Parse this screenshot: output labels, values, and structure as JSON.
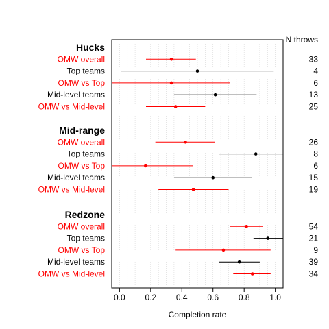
{
  "chart_data": {
    "type": "scatter",
    "subtype": "forest-plot-with-confidence-intervals",
    "xlabel": "Completion rate",
    "xlim": [
      -0.05,
      1.05
    ],
    "xticks": [
      "0.0",
      "0.2",
      "0.4",
      "0.6",
      "0.8",
      "1.0"
    ],
    "xtick_values": [
      0.0,
      0.2,
      0.4,
      0.6,
      0.8,
      1.0
    ],
    "grid": "vertical dotted",
    "right_header": "N throws",
    "colors": {
      "omw": "#ff0000",
      "other": "#000000",
      "grid": "#d3d3d3"
    },
    "groups": [
      {
        "name": "Hucks",
        "rows": [
          {
            "label": "OMW overall",
            "highlight": true,
            "estimate": 0.333,
            "lower": 0.17,
            "upper": 0.49,
            "n": "33"
          },
          {
            "label": "Top teams",
            "highlight": false,
            "estimate": 0.5,
            "lower": 0.01,
            "upper": 0.99,
            "n": "4"
          },
          {
            "label": "OMW vs Top",
            "highlight": true,
            "estimate": 0.333,
            "lower": -0.05,
            "upper": 0.71,
            "n": "6"
          },
          {
            "label": "Mid-level teams",
            "highlight": false,
            "estimate": 0.615,
            "lower": 0.35,
            "upper": 0.88,
            "n": "13"
          },
          {
            "label": "OMW vs Mid-level",
            "highlight": true,
            "estimate": 0.36,
            "lower": 0.17,
            "upper": 0.55,
            "n": "25"
          }
        ]
      },
      {
        "name": "Mid-range",
        "rows": [
          {
            "label": "OMW overall",
            "highlight": true,
            "estimate": 0.423,
            "lower": 0.23,
            "upper": 0.61,
            "n": "26"
          },
          {
            "label": "Top teams",
            "highlight": false,
            "estimate": 0.875,
            "lower": 0.64,
            "upper": 1.05,
            "n": "8"
          },
          {
            "label": "OMW vs Top",
            "highlight": true,
            "estimate": 0.167,
            "lower": -0.05,
            "upper": 0.47,
            "n": "6"
          },
          {
            "label": "Mid-level teams",
            "highlight": false,
            "estimate": 0.6,
            "lower": 0.35,
            "upper": 0.85,
            "n": "15"
          },
          {
            "label": "OMW vs Mid-level",
            "highlight": true,
            "estimate": 0.474,
            "lower": 0.25,
            "upper": 0.7,
            "n": "19"
          }
        ]
      },
      {
        "name": "Redzone",
        "rows": [
          {
            "label": "OMW overall",
            "highlight": true,
            "estimate": 0.815,
            "lower": 0.71,
            "upper": 0.92,
            "n": "54"
          },
          {
            "label": "Top teams",
            "highlight": false,
            "estimate": 0.952,
            "lower": 0.86,
            "upper": 1.05,
            "n": "21"
          },
          {
            "label": "OMW vs Top",
            "highlight": true,
            "estimate": 0.667,
            "lower": 0.36,
            "upper": 0.97,
            "n": "9"
          },
          {
            "label": "Mid-level teams",
            "highlight": false,
            "estimate": 0.769,
            "lower": 0.64,
            "upper": 0.9,
            "n": "39"
          },
          {
            "label": "OMW vs Mid-level",
            "highlight": true,
            "estimate": 0.853,
            "lower": 0.73,
            "upper": 0.97,
            "n": "34"
          }
        ]
      }
    ]
  }
}
